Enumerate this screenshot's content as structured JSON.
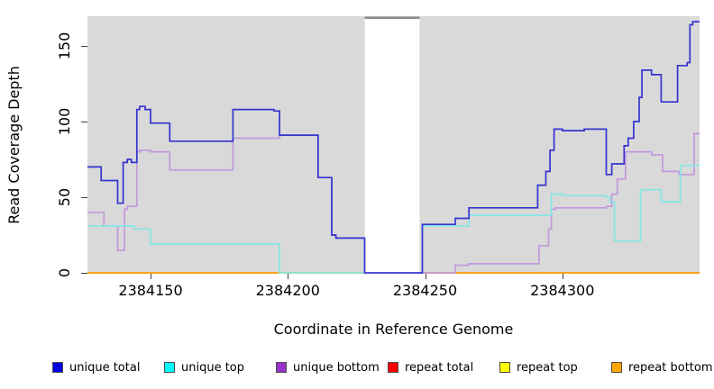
{
  "figure": {
    "x_axis_title": "Coordinate in Reference Genome",
    "y_axis_title": "Read Coverage Depth"
  },
  "chart_data": {
    "type": "line",
    "subtype": "step-coverage-plot",
    "title": "",
    "xlabel": "Coordinate in Reference Genome",
    "ylabel": "Read Coverage Depth",
    "xlim": [
      2384127,
      2384350
    ],
    "ylim": [
      0,
      170
    ],
    "x_ticks": [
      2384150,
      2384200,
      2384250,
      2384300
    ],
    "y_ticks": [
      0,
      50,
      100,
      150
    ],
    "grid": false,
    "panel_bg": "#d9d9d9",
    "gap_region": {
      "x_start": 2384228,
      "x_end": 2384248,
      "fill": "#ffffff",
      "top_line_color": "#8c8c8c"
    },
    "legend_position": "bottom",
    "legend_order": [
      "unique total",
      "unique top",
      "unique bottom",
      "repeat total",
      "repeat top",
      "repeat bottom"
    ],
    "series": [
      {
        "name": "repeat total",
        "line_color": "#dd2222",
        "swatch_color": "#ff0000",
        "points": [
          [
            2384127,
            0
          ],
          [
            2384350,
            0
          ]
        ]
      },
      {
        "name": "repeat top",
        "line_color": "#eeee22",
        "swatch_color": "#ffff00",
        "points": [
          [
            2384127,
            0
          ],
          [
            2384350,
            0
          ]
        ]
      },
      {
        "name": "repeat bottom",
        "line_color": "#ff9e1b",
        "swatch_color": "#ffa500",
        "points": [
          [
            2384127,
            0
          ],
          [
            2384350,
            0
          ]
        ]
      },
      {
        "name": "unique bottom",
        "line_color": "#c299dc",
        "swatch_color": "#9933cc",
        "points": [
          [
            2384127,
            40
          ],
          [
            2384133,
            31
          ],
          [
            2384138,
            15
          ],
          [
            2384140.5,
            42
          ],
          [
            2384141.5,
            44
          ],
          [
            2384145,
            80
          ],
          [
            2384146,
            81
          ],
          [
            2384150,
            80
          ],
          [
            2384157,
            68
          ],
          [
            2384180,
            89
          ],
          [
            2384197,
            91
          ],
          [
            2384211,
            63
          ],
          [
            2384216,
            25
          ],
          [
            2384217.5,
            23
          ],
          [
            2384228,
            0
          ],
          [
            2384261,
            5
          ],
          [
            2384266,
            6
          ],
          [
            2384291.5,
            18
          ],
          [
            2384295,
            29
          ],
          [
            2384296,
            42
          ],
          [
            2384297.5,
            43
          ],
          [
            2384316,
            44
          ],
          [
            2384318,
            52
          ],
          [
            2384320,
            62
          ],
          [
            2384323,
            80
          ],
          [
            2384332.5,
            78
          ],
          [
            2384336.5,
            67
          ],
          [
            2384342.5,
            65
          ],
          [
            2384348,
            92
          ],
          [
            2384350,
            92
          ]
        ]
      },
      {
        "name": "unique top",
        "line_color": "#85e6e6",
        "swatch_color": "#00ffff",
        "points": [
          [
            2384127,
            31
          ],
          [
            2384144,
            29
          ],
          [
            2384150,
            19
          ],
          [
            2384197,
            0
          ],
          [
            2384249,
            31
          ],
          [
            2384266,
            38
          ],
          [
            2384296,
            52
          ],
          [
            2384300,
            51
          ],
          [
            2384316,
            50
          ],
          [
            2384317.5,
            47
          ],
          [
            2384319,
            21
          ],
          [
            2384328.5,
            55
          ],
          [
            2384336,
            47
          ],
          [
            2384343,
            71
          ],
          [
            2384350,
            71
          ]
        ]
      },
      {
        "name": "unique total",
        "line_color": "#3434d0",
        "swatch_color": "#0000e0",
        "points": [
          [
            2384127,
            70
          ],
          [
            2384132,
            61
          ],
          [
            2384138,
            46
          ],
          [
            2384140,
            73
          ],
          [
            2384141.5,
            75
          ],
          [
            2384143,
            73
          ],
          [
            2384145,
            108
          ],
          [
            2384146,
            110
          ],
          [
            2384148,
            108
          ],
          [
            2384150,
            99
          ],
          [
            2384157,
            87
          ],
          [
            2384180,
            108
          ],
          [
            2384195,
            107
          ],
          [
            2384197,
            91
          ],
          [
            2384211,
            63
          ],
          [
            2384216,
            25
          ],
          [
            2384217.5,
            23
          ],
          [
            2384228,
            0
          ],
          [
            2384249,
            32
          ],
          [
            2384261,
            36
          ],
          [
            2384266,
            43
          ],
          [
            2384291,
            58
          ],
          [
            2384294,
            67
          ],
          [
            2384295.5,
            81
          ],
          [
            2384297,
            95
          ],
          [
            2384300,
            94
          ],
          [
            2384308,
            95
          ],
          [
            2384316,
            65
          ],
          [
            2384318,
            72
          ],
          [
            2384322.5,
            84
          ],
          [
            2384324,
            89
          ],
          [
            2384326,
            100
          ],
          [
            2384328,
            116
          ],
          [
            2384329,
            134
          ],
          [
            2384332.5,
            131
          ],
          [
            2384336,
            113
          ],
          [
            2384342,
            137
          ],
          [
            2384345.5,
            139
          ],
          [
            2384346.5,
            164
          ],
          [
            2384347.5,
            166
          ],
          [
            2384350,
            166
          ]
        ]
      }
    ]
  }
}
